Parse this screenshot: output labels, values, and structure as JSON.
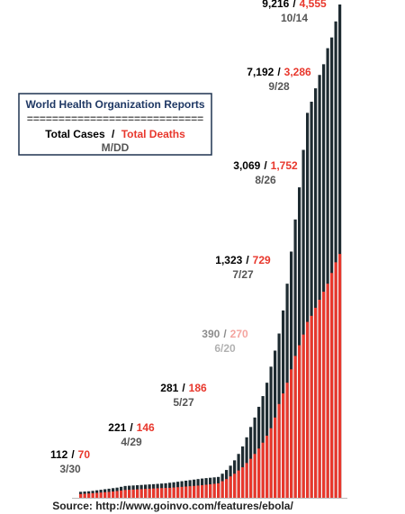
{
  "chart_data": {
    "type": "bar",
    "title": "World Health Organization Reports",
    "legend_rule": "============================",
    "separator": "/",
    "date_format_label": "M/DD",
    "source": "Source: http://www.goinvo.com/features/ebola/",
    "categories": [
      "3/30",
      null,
      null,
      null,
      null,
      null,
      null,
      null,
      null,
      null,
      null,
      "4/29",
      null,
      null,
      null,
      null,
      null,
      null,
      null,
      null,
      null,
      null,
      "5/27",
      null,
      null,
      null,
      null,
      null,
      null,
      null,
      null,
      null,
      null,
      null,
      "6/20",
      null,
      null,
      null,
      null,
      null,
      null,
      null,
      "7/27",
      null,
      null,
      null,
      null,
      null,
      null,
      "8/26",
      null,
      null,
      null,
      null,
      null,
      null,
      "9/28",
      null,
      null,
      null,
      null,
      null,
      null,
      null,
      "10/14"
    ],
    "series": [
      {
        "name": "Total Cases",
        "color": "#1e2b31",
        "values": [
          112,
          117,
          122,
          130,
          140,
          150,
          160,
          170,
          180,
          190,
          205,
          221,
          226,
          230,
          235,
          240,
          245,
          250,
          255,
          260,
          266,
          272,
          281,
          290,
          300,
          310,
          320,
          330,
          340,
          350,
          360,
          368,
          375,
          382,
          390,
          450,
          520,
          600,
          700,
          820,
          960,
          1130,
          1323,
          1500,
          1700,
          1900,
          2150,
          2450,
          2750,
          3069,
          3500,
          4000,
          4600,
          5200,
          5800,
          6500,
          7192,
          7400,
          7650,
          7900,
          8100,
          8400,
          8600,
          8900,
          9216
        ],
        "value_labels": [
          "112",
          null,
          null,
          null,
          null,
          null,
          null,
          null,
          null,
          null,
          null,
          "221",
          null,
          null,
          null,
          null,
          null,
          null,
          null,
          null,
          null,
          null,
          "281",
          null,
          null,
          null,
          null,
          null,
          null,
          null,
          null,
          null,
          null,
          null,
          "390",
          null,
          null,
          null,
          null,
          null,
          null,
          null,
          "1,323",
          null,
          null,
          null,
          null,
          null,
          null,
          "3,069",
          null,
          null,
          null,
          null,
          null,
          null,
          "7,192",
          null,
          null,
          null,
          null,
          null,
          null,
          null,
          "9,216"
        ]
      },
      {
        "name": "Total Deaths",
        "color": "#e8372c",
        "values": [
          70,
          75,
          80,
          86,
          92,
          98,
          104,
          110,
          118,
          126,
          136,
          146,
          150,
          154,
          158,
          162,
          166,
          170,
          174,
          178,
          181,
          184,
          186,
          192,
          198,
          204,
          210,
          216,
          222,
          228,
          236,
          244,
          252,
          261,
          270,
          310,
          350,
          400,
          450,
          510,
          570,
          650,
          729,
          820,
          920,
          1030,
          1160,
          1300,
          1500,
          1752,
          1950,
          2150,
          2400,
          2650,
          2850,
          3050,
          3286,
          3400,
          3550,
          3700,
          3850,
          4000,
          4200,
          4400,
          4555
        ],
        "value_labels": [
          "70",
          null,
          null,
          null,
          null,
          null,
          null,
          null,
          null,
          null,
          null,
          "146",
          null,
          null,
          null,
          null,
          null,
          null,
          null,
          null,
          null,
          null,
          "186",
          null,
          null,
          null,
          null,
          null,
          null,
          null,
          null,
          null,
          null,
          null,
          "270",
          null,
          null,
          null,
          null,
          null,
          null,
          null,
          "729",
          null,
          null,
          null,
          null,
          null,
          null,
          "1,752",
          null,
          null,
          null,
          null,
          null,
          null,
          "3,286",
          null,
          null,
          null,
          null,
          null,
          null,
          null,
          "4,555"
        ]
      }
    ]
  }
}
